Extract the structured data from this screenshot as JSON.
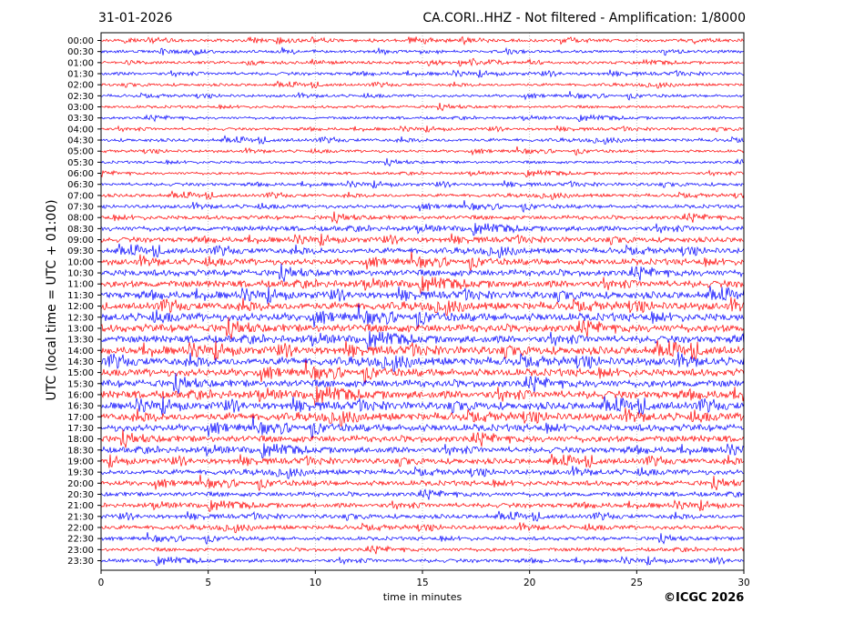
{
  "header": {
    "date": "31-01-2026",
    "title": "CA.CORI..HHZ - Not filtered - Amplification: 1/8000"
  },
  "footer": {
    "copyright": "©ICGC 2026"
  },
  "chart_data": {
    "type": "line",
    "title": "CA.CORI..HHZ - Not filtered - Amplification: 1/8000",
    "xlabel": "time in minutes",
    "ylabel": "UTC (local time = UTC + 01:00)",
    "xlim": [
      0,
      30
    ],
    "xticks": [
      0,
      5,
      10,
      15,
      20,
      25,
      30
    ],
    "grid": true,
    "row_labels": [
      "00:00",
      "00:30",
      "01:00",
      "01:30",
      "02:00",
      "02:30",
      "03:00",
      "03:30",
      "04:00",
      "04:30",
      "05:00",
      "05:30",
      "06:00",
      "06:30",
      "07:00",
      "07:30",
      "08:00",
      "08:30",
      "09:00",
      "09:30",
      "10:00",
      "10:30",
      "11:00",
      "11:30",
      "12:00",
      "12:30",
      "13:00",
      "13:30",
      "14:00",
      "14:30",
      "15:00",
      "15:30",
      "16:00",
      "16:30",
      "17:00",
      "17:30",
      "18:00",
      "18:30",
      "19:00",
      "19:30",
      "20:00",
      "20:30",
      "21:00",
      "21:30",
      "22:00",
      "22:30",
      "23:00",
      "23:30"
    ],
    "trace_colors": [
      "#ff0000",
      "#0000ff"
    ],
    "relative_amplitude": [
      0.35,
      0.3,
      0.3,
      0.35,
      0.3,
      0.3,
      0.3,
      0.3,
      0.3,
      0.35,
      0.3,
      0.3,
      0.3,
      0.35,
      0.35,
      0.4,
      0.45,
      0.55,
      0.55,
      0.6,
      0.65,
      0.7,
      0.75,
      0.75,
      0.8,
      0.85,
      0.85,
      0.8,
      0.85,
      0.85,
      0.8,
      0.8,
      0.85,
      0.8,
      0.8,
      0.75,
      0.7,
      0.65,
      0.6,
      0.55,
      0.55,
      0.5,
      0.5,
      0.45,
      0.45,
      0.4,
      0.4,
      0.4
    ]
  }
}
